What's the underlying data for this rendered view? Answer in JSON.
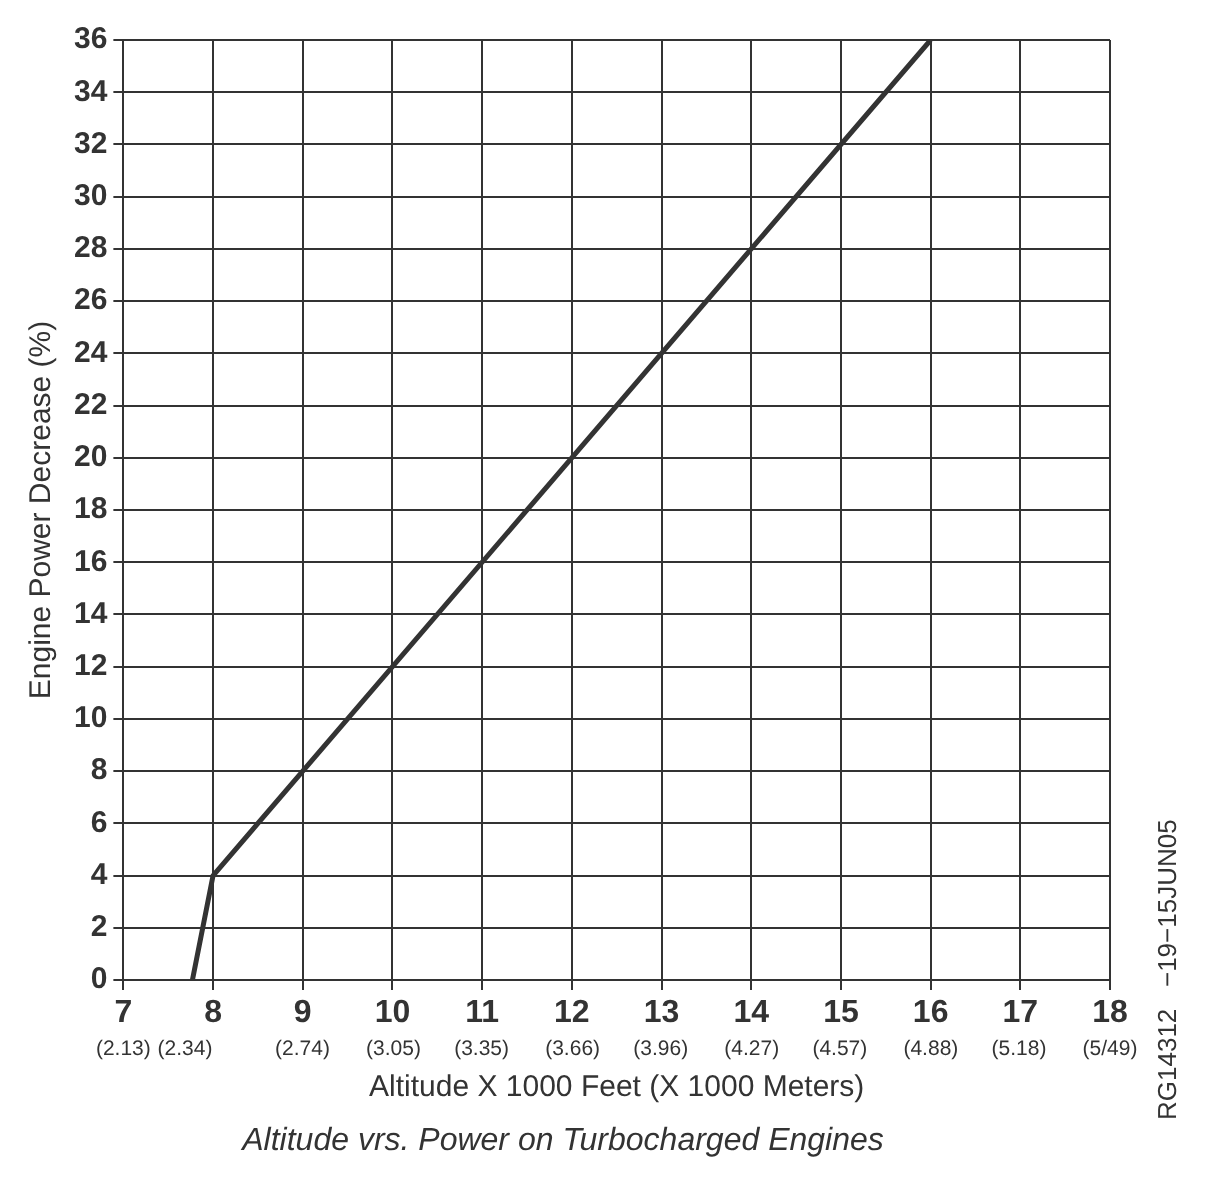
{
  "chart_data": {
    "type": "line",
    "title": "Altitude vrs. Power on Turbocharged Engines",
    "xlabel": "Altitude X 1000 Feet (X 1000 Meters)",
    "ylabel": "Engine Power Decrease (%)",
    "annotations": [
      "RG14312   −19−15JUN05"
    ],
    "series": [
      {
        "color": "#333333",
        "x": [
          7.77,
          8,
          16
        ],
        "values": [
          0,
          4,
          36
        ]
      }
    ],
    "xlim": [
      7,
      18
    ],
    "xticks": [
      7,
      8,
      9,
      10,
      11,
      12,
      13,
      14,
      15,
      16,
      17,
      18
    ],
    "x2lim": [
      2.13,
      5.49
    ],
    "x2ticks": [
      {
        "value": 2.13,
        "label": "(2.13)"
      },
      {
        "value": 2.34,
        "label": "(2.34)"
      },
      {
        "value": 2.74,
        "label": "(2.74)"
      },
      {
        "value": 3.05,
        "label": "(3.05)"
      },
      {
        "value": 3.35,
        "label": "(3.35)"
      },
      {
        "value": 3.66,
        "label": "(3.66)"
      },
      {
        "value": 3.96,
        "label": "(3.96)"
      },
      {
        "value": 4.27,
        "label": "(4.27)"
      },
      {
        "value": 4.57,
        "label": "(4.57)"
      },
      {
        "value": 4.88,
        "label": "(4.88)"
      },
      {
        "value": 5.18,
        "label": "(5.18)"
      },
      {
        "value": 5.49,
        "label": "(5/49)"
      }
    ],
    "ylim": [
      0,
      36
    ],
    "yticks": [
      0,
      2,
      4,
      6,
      8,
      10,
      12,
      14,
      16,
      18,
      20,
      22,
      24,
      26,
      28,
      30,
      32,
      34,
      36
    ],
    "grid": true,
    "legend": false,
    "marker": "none",
    "line_style": "solid"
  }
}
